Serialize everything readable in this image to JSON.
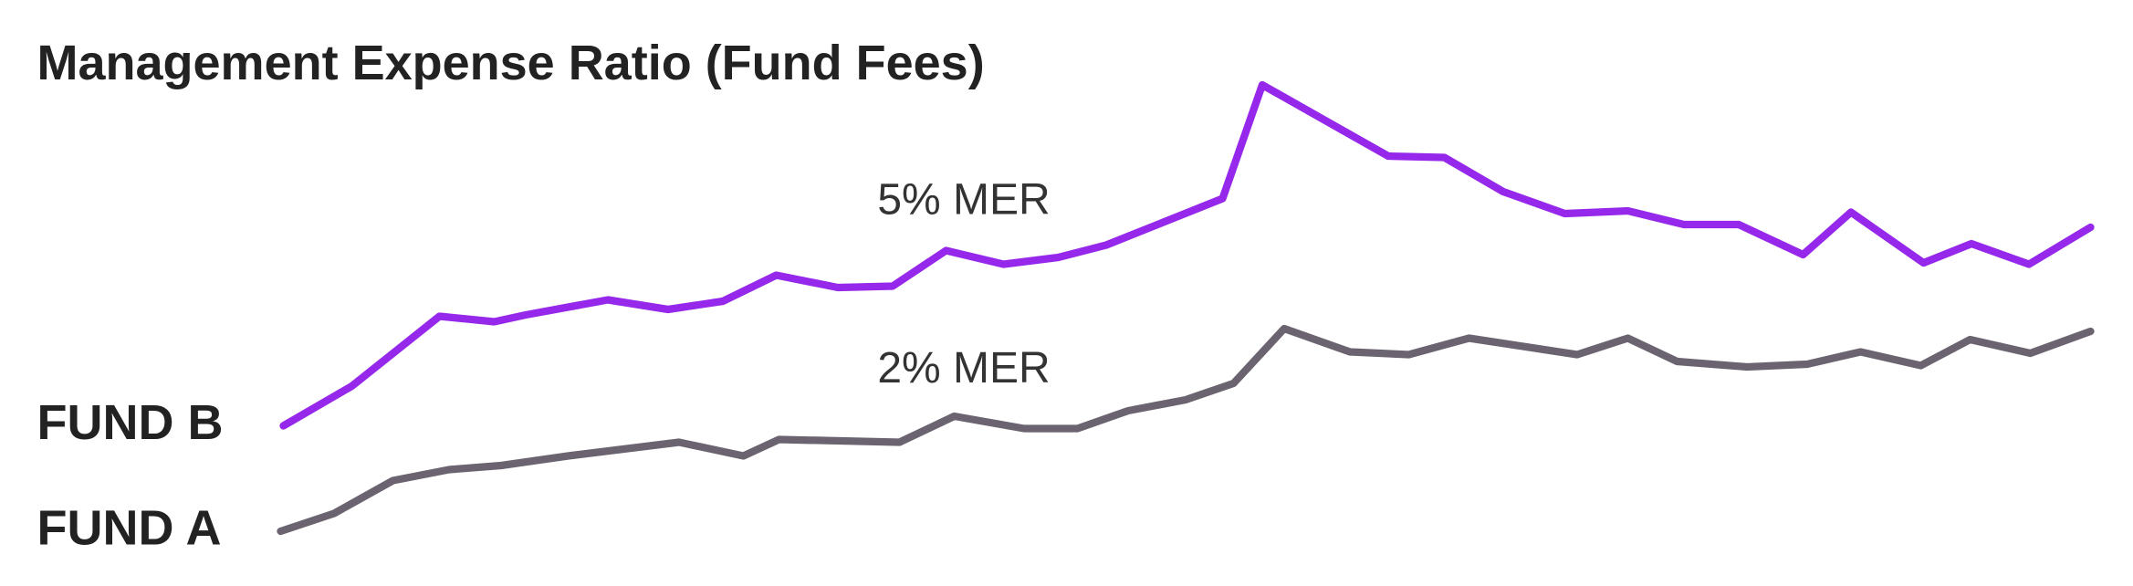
{
  "chart_data": {
    "type": "line",
    "title": "Management Expense Ratio (Fund Fees)",
    "xlim": [
      0,
      1558
    ],
    "ylim": [
      0,
      428
    ],
    "annotations": [
      "5% MER",
      "2% MER"
    ],
    "series": [
      {
        "name": "FUND B",
        "color": "#9528ea",
        "x": [
          207,
          257,
          321,
          361,
          384,
          444,
          488,
          528,
          567,
          612,
          652,
          691,
          733,
          773,
          808,
          893,
          922,
          1014,
          1055,
          1098,
          1143,
          1189,
          1230,
          1270,
          1317,
          1352,
          1405,
          1440,
          1482,
          1527
        ],
        "values": [
          117,
          146,
          197,
          193,
          198,
          209,
          202,
          208,
          227,
          218,
          219,
          245,
          235,
          240,
          249,
          283,
          366,
          314,
          313,
          288,
          272,
          274,
          264,
          264,
          242,
          273,
          236,
          250,
          235,
          262
        ]
      },
      {
        "name": "FUND A",
        "color": "#6b6470",
        "x": [
          205,
          244,
          287,
          328,
          366,
          415,
          496,
          543,
          569,
          657,
          697,
          748,
          787,
          824,
          866,
          901,
          938,
          986,
          1029,
          1073,
          1152,
          1189,
          1225,
          1276,
          1320,
          1359,
          1403,
          1439,
          1483,
          1527
        ],
        "values": [
          40,
          53,
          77,
          85,
          88,
          95,
          105,
          95,
          107,
          105,
          124,
          115,
          115,
          128,
          136,
          148,
          188,
          171,
          169,
          181,
          169,
          181,
          164,
          160,
          162,
          171,
          161,
          180,
          170,
          186
        ]
      }
    ]
  }
}
